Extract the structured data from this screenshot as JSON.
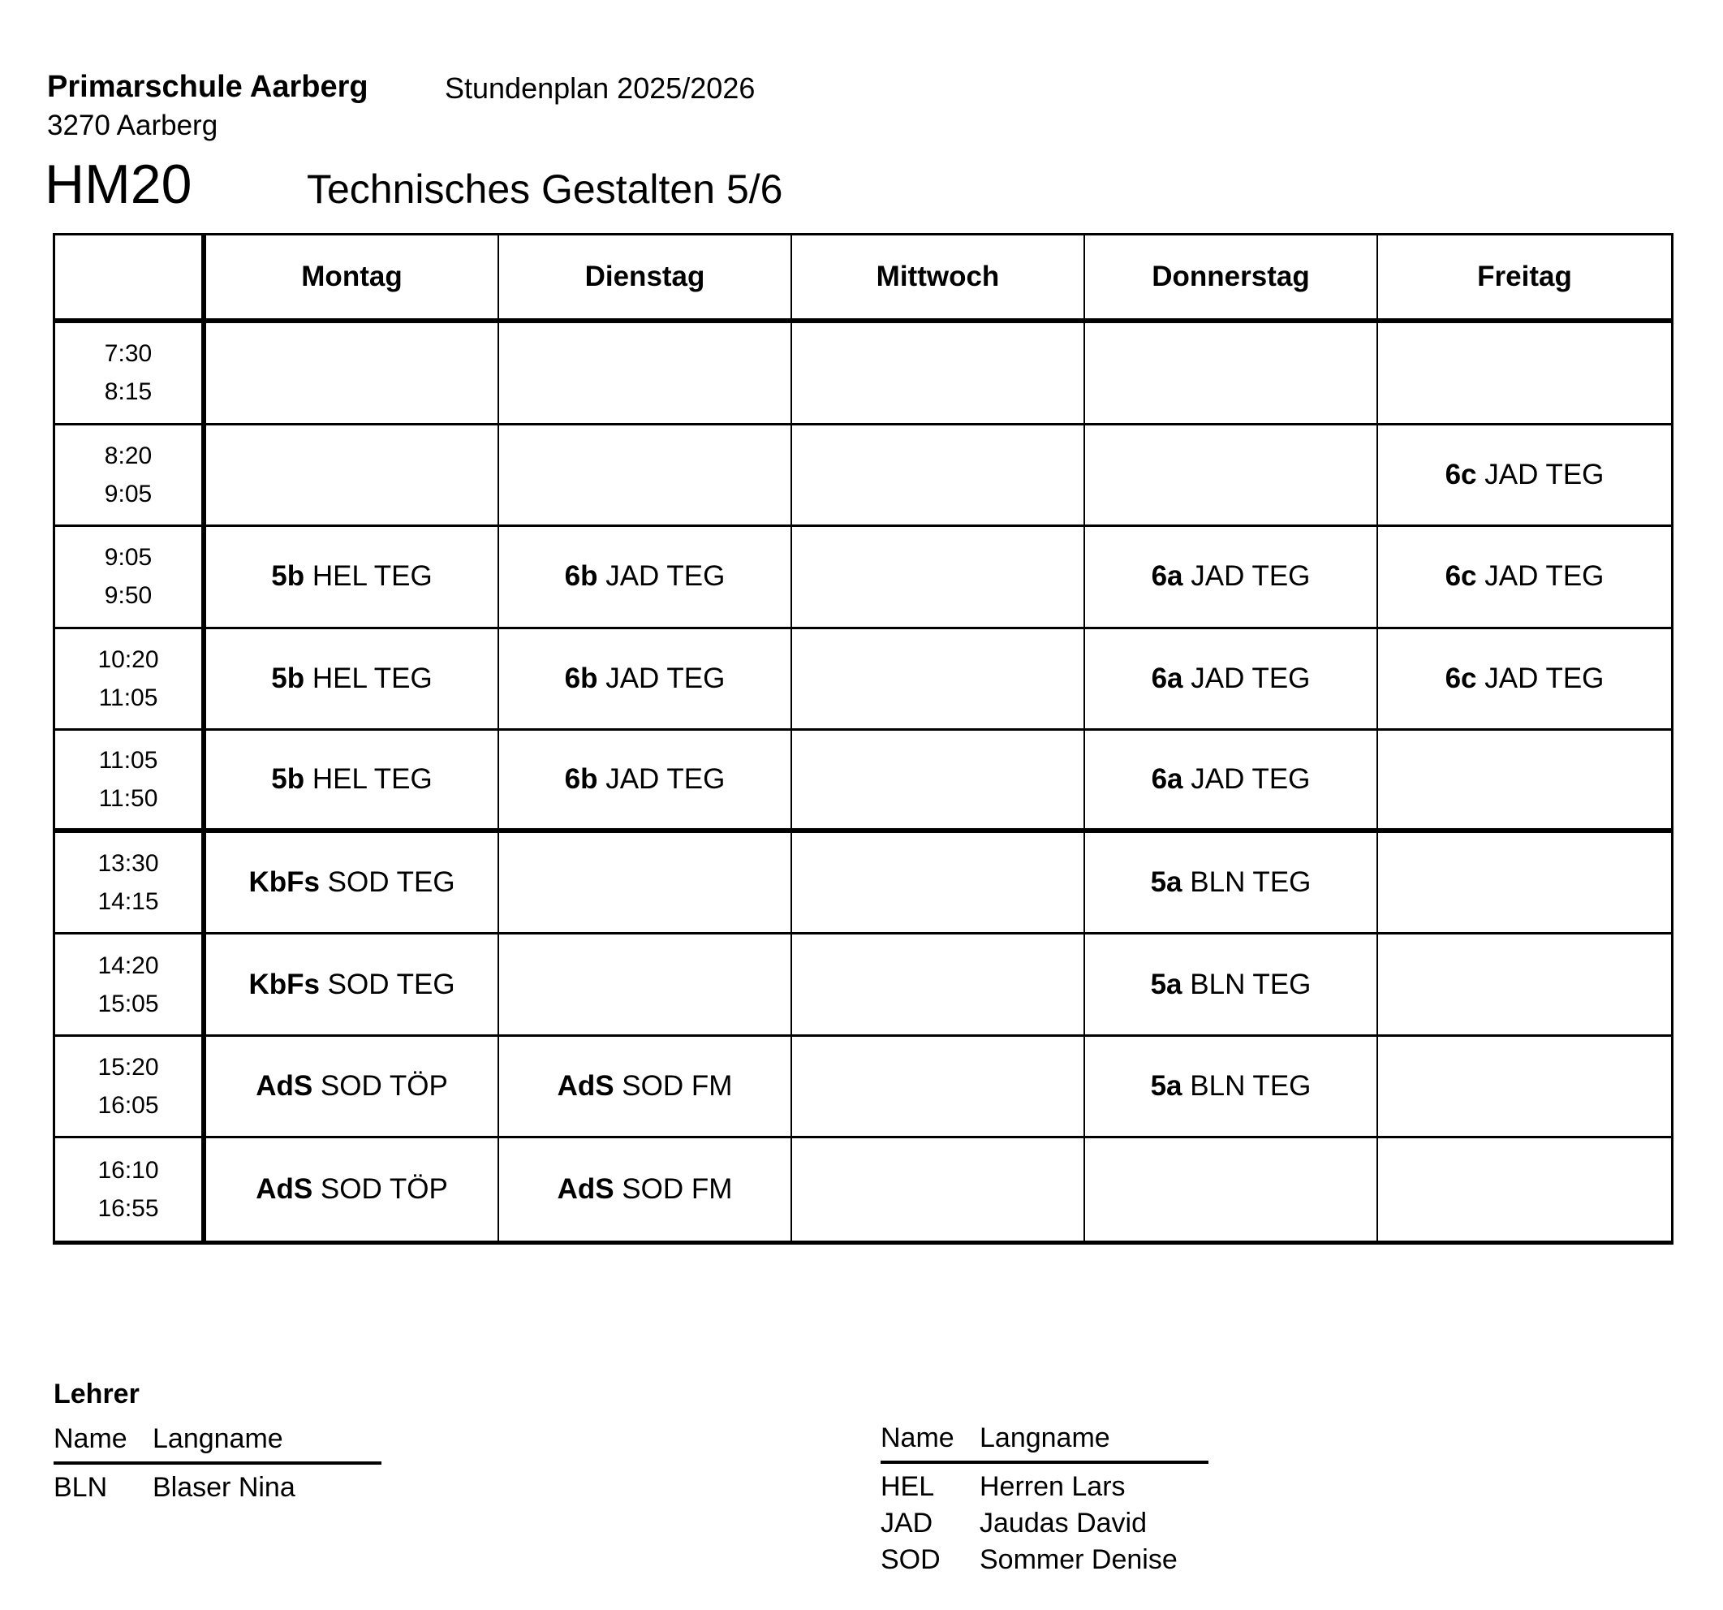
{
  "header": {
    "school": "Primarschule Aarberg",
    "plan_title": "Stundenplan 2025/2026",
    "city": "3270 Aarberg",
    "room_code": "HM20",
    "subject_title": "Technisches Gestalten 5/6"
  },
  "timetable": {
    "days": [
      "Montag",
      "Dienstag",
      "Mittwoch",
      "Donnerstag",
      "Freitag"
    ],
    "rows": [
      {
        "start": "7:30",
        "end": "8:15",
        "lunch_break_after": false,
        "cells": [
          null,
          null,
          null,
          null,
          null
        ]
      },
      {
        "start": "8:20",
        "end": "9:05",
        "lunch_break_after": false,
        "cells": [
          null,
          null,
          null,
          null,
          {
            "group": "6c",
            "text": "JAD TEG"
          }
        ]
      },
      {
        "start": "9:05",
        "end": "9:50",
        "lunch_break_after": false,
        "cells": [
          {
            "group": "5b",
            "text": "HEL TEG"
          },
          {
            "group": "6b",
            "text": "JAD TEG"
          },
          null,
          {
            "group": "6a",
            "text": "JAD TEG"
          },
          {
            "group": "6c",
            "text": "JAD TEG"
          }
        ]
      },
      {
        "start": "10:20",
        "end": "11:05",
        "lunch_break_after": false,
        "cells": [
          {
            "group": "5b",
            "text": "HEL TEG"
          },
          {
            "group": "6b",
            "text": "JAD TEG"
          },
          null,
          {
            "group": "6a",
            "text": "JAD TEG"
          },
          {
            "group": "6c",
            "text": "JAD TEG"
          }
        ]
      },
      {
        "start": "11:05",
        "end": "11:50",
        "lunch_break_after": true,
        "cells": [
          {
            "group": "5b",
            "text": "HEL TEG"
          },
          {
            "group": "6b",
            "text": "JAD TEG"
          },
          null,
          {
            "group": "6a",
            "text": "JAD TEG"
          },
          null
        ]
      },
      {
        "start": "13:30",
        "end": "14:15",
        "lunch_break_after": false,
        "cells": [
          {
            "group": "KbFs",
            "text": "SOD TEG"
          },
          null,
          null,
          {
            "group": "5a",
            "text": "BLN TEG"
          },
          null
        ]
      },
      {
        "start": "14:20",
        "end": "15:05",
        "lunch_break_after": false,
        "cells": [
          {
            "group": "KbFs",
            "text": "SOD TEG"
          },
          null,
          null,
          {
            "group": "5a",
            "text": "BLN TEG"
          },
          null
        ]
      },
      {
        "start": "15:20",
        "end": "16:05",
        "lunch_break_after": false,
        "cells": [
          {
            "group": "AdS",
            "text": "SOD TÖP"
          },
          {
            "group": "AdS",
            "text": "SOD FM"
          },
          null,
          {
            "group": "5a",
            "text": "BLN TEG"
          },
          null
        ]
      },
      {
        "start": "16:10",
        "end": "16:55",
        "lunch_break_after": false,
        "cells": [
          {
            "group": "AdS",
            "text": "SOD TÖP"
          },
          {
            "group": "AdS",
            "text": "SOD FM"
          },
          null,
          null,
          null
        ]
      }
    ]
  },
  "teachers": {
    "heading": "Lehrer",
    "col_name": "Name",
    "col_longname": "Langname",
    "left": [
      {
        "code": "BLN",
        "name": "Blaser Nina"
      }
    ],
    "right": [
      {
        "code": "HEL",
        "name": "Herren Lars"
      },
      {
        "code": "JAD",
        "name": "Jaudas David"
      },
      {
        "code": "SOD",
        "name": "Sommer Denise"
      }
    ]
  }
}
